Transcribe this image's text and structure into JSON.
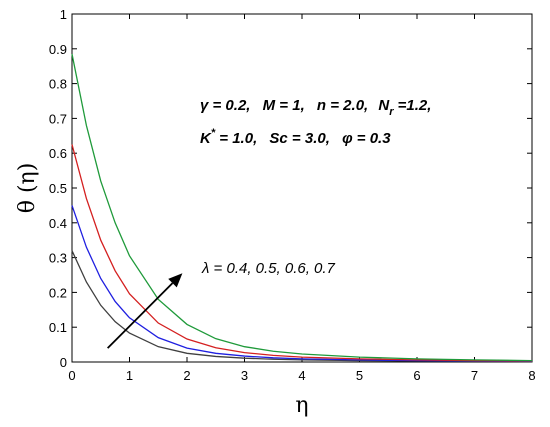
{
  "chart_data": {
    "type": "line",
    "xlabel": "η",
    "ylabel": "θ (η)",
    "xlim": [
      0,
      8
    ],
    "ylim": [
      0,
      1
    ],
    "xticks": [
      "0",
      "1",
      "2",
      "3",
      "4",
      "5",
      "6",
      "7",
      "8"
    ],
    "yticks": [
      "0",
      "0.1",
      "0.2",
      "0.3",
      "0.4",
      "0.5",
      "0.6",
      "0.7",
      "0.8",
      "0.9",
      "1"
    ],
    "grid": false,
    "annotations": {
      "params_line1": {
        "gamma": "γ = 0.2,",
        "M": "M = 1,",
        "n": "n = 2.0,",
        "Nr_prefix": "N",
        "Nr_sub": "r",
        "Nr_value": " =1.2,"
      },
      "params_line2": {
        "K_prefix": "K",
        "K_sup": "*",
        "K_value": " = 1.0,",
        "Sc": "Sc = 3.0,",
        "phi": "φ = 0.3"
      },
      "lambda_label": "λ = 0.4, 0.5, 0.6, 0.7"
    },
    "series": [
      {
        "color": "#404040",
        "x": [
          0,
          0.25,
          0.5,
          0.75,
          1,
          1.5,
          2,
          2.5,
          3,
          3.5,
          4,
          5,
          6,
          7,
          8
        ],
        "values": [
          0.32,
          0.23,
          0.163,
          0.116,
          0.083,
          0.044,
          0.025,
          0.016,
          0.011,
          0.008,
          0.006,
          0.004,
          0.003,
          0.002,
          0.001
        ]
      },
      {
        "color": "#1f1fe0",
        "x": [
          0,
          0.25,
          0.5,
          0.75,
          1,
          1.5,
          2,
          2.5,
          3,
          3.5,
          4,
          5,
          6,
          7,
          8
        ],
        "values": [
          0.45,
          0.33,
          0.24,
          0.174,
          0.127,
          0.07,
          0.04,
          0.025,
          0.017,
          0.012,
          0.009,
          0.006,
          0.004,
          0.003,
          0.002
        ]
      },
      {
        "color": "#d42020",
        "x": [
          0,
          0.25,
          0.5,
          0.75,
          1,
          1.5,
          2,
          2.5,
          3,
          3.5,
          4,
          5,
          6,
          7,
          8
        ],
        "values": [
          0.625,
          0.47,
          0.35,
          0.262,
          0.196,
          0.112,
          0.066,
          0.041,
          0.027,
          0.019,
          0.014,
          0.009,
          0.006,
          0.004,
          0.003
        ]
      },
      {
        "color": "#1f9a3a",
        "x": [
          0,
          0.25,
          0.5,
          0.75,
          1,
          1.5,
          2,
          2.5,
          3,
          3.5,
          4,
          5,
          6,
          7,
          8
        ],
        "values": [
          0.885,
          0.68,
          0.52,
          0.4,
          0.305,
          0.18,
          0.108,
          0.067,
          0.044,
          0.031,
          0.023,
          0.014,
          0.009,
          0.006,
          0.004
        ]
      }
    ],
    "arrow": {
      "from": [
        0.62,
        0.04
      ],
      "to": [
        1.92,
        0.255
      ]
    }
  }
}
